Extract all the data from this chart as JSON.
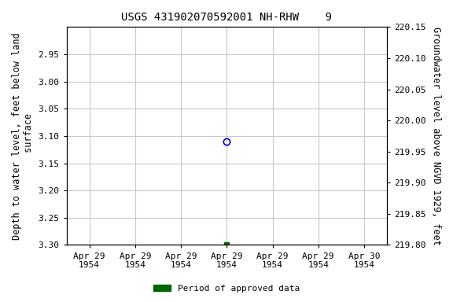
{
  "title": "USGS 431902070592001 NH-RHW    9",
  "ylabel_left": "Depth to water level, feet below land\n surface",
  "ylabel_right": "Groundwater level above NGVD 1929, feet",
  "ylim_left": [
    2.9,
    3.3
  ],
  "ylim_left_display_top": 2.9,
  "ylim_left_display_bottom": 3.3,
  "ylim_right_display_top": 220.15,
  "ylim_right_display_bottom": 219.8,
  "left_yticks": [
    2.95,
    3.0,
    3.05,
    3.1,
    3.15,
    3.2,
    3.25,
    3.3
  ],
  "right_yticks": [
    220.15,
    220.1,
    220.05,
    220.0,
    219.95,
    219.9,
    219.85,
    219.8
  ],
  "point1_x": 3.5,
  "point1_y": 3.11,
  "point1_color": "#0000cc",
  "point1_marker": "o",
  "point2_x": 3.5,
  "point2_y": 3.3,
  "point2_color": "#006400",
  "point2_marker": "s",
  "xlim": [
    0,
    7
  ],
  "xtick_positions": [
    0.5,
    1.5,
    2.5,
    3.5,
    4.5,
    5.5,
    6.5
  ],
  "xtick_labels": [
    "Apr 29\n1954",
    "Apr 29\n1954",
    "Apr 29\n1954",
    "Apr 29\n1954",
    "Apr 29\n1954",
    "Apr 29\n1954",
    "Apr 30\n1954"
  ],
  "legend_label": "Period of approved data",
  "legend_color": "#006400",
  "background_color": "#ffffff",
  "grid_color": "#c8c8c8",
  "title_fontsize": 10,
  "axis_fontsize": 8.5,
  "tick_fontsize": 8
}
